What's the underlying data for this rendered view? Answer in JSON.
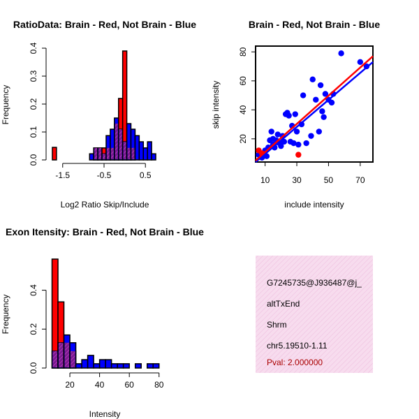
{
  "colors": {
    "red": "#ff0000",
    "blue": "#0000ff",
    "purple": "#9b1f9b",
    "panel_bg": "#f5d6ea"
  },
  "chart_data": [
    {
      "type": "bar",
      "title": "RatioData: Brain - Red, Not Brain - Blue",
      "xlabel": "Log2 Ratio Skip/Include",
      "ylabel": "Frequency",
      "xlim": [
        -1.8,
        0.8
      ],
      "ylim": [
        0,
        0.4
      ],
      "xticks": [
        "-1.5",
        "-0.5",
        "0.5"
      ],
      "xtick_values": [
        -1.5,
        -0.5,
        0.5
      ],
      "yticks": [
        "0.0",
        "0.1",
        "0.2",
        "0.3",
        "0.4"
      ],
      "ytick_values": [
        0,
        0.1,
        0.2,
        0.3,
        0.4
      ],
      "bin_edges": [
        -1.75,
        -1.65,
        -1.55,
        -1.45,
        -1.35,
        -1.25,
        -1.15,
        -1.05,
        -0.95,
        -0.85,
        -0.75,
        -0.65,
        -0.55,
        -0.45,
        -0.35,
        -0.25,
        -0.15,
        -0.05,
        0.05,
        0.15,
        0.25,
        0.35,
        0.45,
        0.55,
        0.65,
        0.75
      ],
      "series": [
        {
          "name": "Brain",
          "color": "red",
          "values": [
            0.045,
            0,
            0,
            0,
            0,
            0,
            0,
            0,
            0,
            0,
            0.043,
            0.043,
            0.043,
            0.043,
            0.043,
            0.13,
            0.22,
            0.39,
            0.043,
            0.043,
            0,
            0,
            0,
            0,
            0
          ]
        },
        {
          "name": "Not Brain",
          "color": "blue",
          "values": [
            0,
            0,
            0,
            0,
            0,
            0,
            0,
            0,
            0,
            0.022,
            0.043,
            0.043,
            0.022,
            0.087,
            0.11,
            0.15,
            0.11,
            0.065,
            0.13,
            0.11,
            0.087,
            0.065,
            0.043,
            0.065,
            0.022
          ]
        }
      ]
    },
    {
      "type": "scatter",
      "title": "Brain - Red, Not Brain - Blue",
      "xlabel": "include intensity",
      "ylabel": "skip intensity",
      "xlim": [
        4,
        78
      ],
      "ylim": [
        4,
        84
      ],
      "xticks": [
        "10",
        "30",
        "50",
        "70"
      ],
      "xtick_values": [
        10,
        30,
        50,
        70
      ],
      "yticks": [
        "20",
        "40",
        "60",
        "80"
      ],
      "ytick_values": [
        20,
        40,
        60,
        80
      ],
      "series": [
        {
          "name": "Not Brain",
          "color": "blue",
          "points": [
            [
              6,
              9
            ],
            [
              8,
              7
            ],
            [
              9,
              10
            ],
            [
              10,
              12
            ],
            [
              11,
              8
            ],
            [
              12,
              14
            ],
            [
              13,
              19
            ],
            [
              14,
              25
            ],
            [
              15,
              20
            ],
            [
              15,
              16
            ],
            [
              16,
              14
            ],
            [
              17,
              19
            ],
            [
              18,
              23
            ],
            [
              19,
              17
            ],
            [
              20,
              15
            ],
            [
              21,
              22
            ],
            [
              22,
              18
            ],
            [
              23,
              37
            ],
            [
              24,
              38
            ],
            [
              25,
              36
            ],
            [
              26,
              18
            ],
            [
              27,
              29
            ],
            [
              28,
              17
            ],
            [
              29,
              37
            ],
            [
              30,
              25
            ],
            [
              31,
              16
            ],
            [
              33,
              30
            ],
            [
              34,
              50
            ],
            [
              36,
              17
            ],
            [
              39,
              22
            ],
            [
              40,
              61
            ],
            [
              42,
              47
            ],
            [
              44,
              25
            ],
            [
              45,
              57
            ],
            [
              46,
              39
            ],
            [
              47,
              35
            ],
            [
              48,
              51
            ],
            [
              50,
              47
            ],
            [
              52,
              45
            ],
            [
              53,
              51
            ],
            [
              58,
              79
            ],
            [
              70,
              73
            ],
            [
              74,
              70
            ]
          ],
          "fit": [
            [
              4,
              4
            ],
            [
              78,
              73
            ]
          ]
        },
        {
          "name": "Brain",
          "color": "red",
          "points": [
            [
              6,
              12
            ],
            [
              8,
              10
            ],
            [
              31,
              9
            ]
          ],
          "fit": [
            [
              4,
              5
            ],
            [
              78,
              77
            ]
          ]
        }
      ]
    },
    {
      "type": "bar",
      "title": "Exon Itensity: Brain - Red, Not Brain - Blue",
      "xlabel": "Intensity",
      "ylabel": "Frequency",
      "xlim": [
        4,
        82
      ],
      "ylim": [
        0,
        0.56
      ],
      "xticks": [
        "20",
        "40",
        "60",
        "80"
      ],
      "xtick_values": [
        20,
        40,
        60,
        80
      ],
      "yticks": [
        "0.0",
        "0.2",
        "0.4"
      ],
      "ytick_values": [
        0,
        0.2,
        0.4
      ],
      "bin_edges": [
        8,
        12,
        16,
        20,
        24,
        28,
        32,
        36,
        40,
        44,
        48,
        52,
        56,
        60,
        64,
        68,
        72,
        76,
        80
      ],
      "series": [
        {
          "name": "Brain",
          "color": "red",
          "values": [
            0.56,
            0.34,
            0.13,
            0.087,
            0,
            0,
            0,
            0,
            0,
            0,
            0,
            0,
            0,
            0,
            0,
            0,
            0,
            0
          ]
        },
        {
          "name": "Not Brain",
          "color": "blue",
          "values": [
            0.087,
            0.13,
            0.17,
            0.13,
            0.022,
            0.043,
            0.065,
            0.022,
            0.043,
            0.043,
            0.022,
            0.022,
            0.022,
            0,
            0.022,
            0,
            0.022,
            0.022
          ]
        }
      ]
    }
  ],
  "info_panel": {
    "event_id": "G7245735@J936487@j_",
    "event_type": "altTxEnd",
    "gene": "Shrm",
    "location": "chr5.19510-1.11",
    "pval": "Pval: 2.000000"
  }
}
